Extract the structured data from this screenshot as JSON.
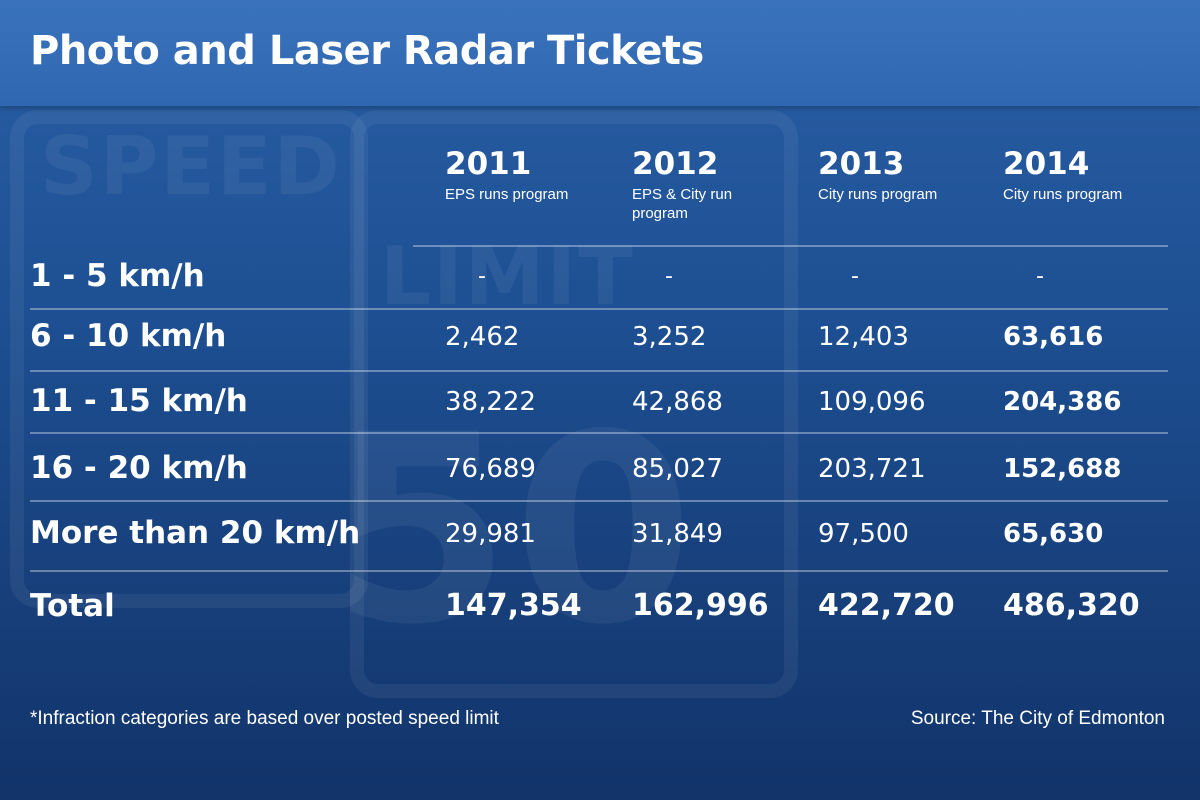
{
  "title": "Photo and Laser Radar Tickets",
  "colors": {
    "background": "#1d4f92",
    "title_bar": "#3a73bd",
    "text": "#ffffff"
  },
  "chart_data": {
    "type": "table",
    "columns": [
      {
        "year": "2011",
        "note": "EPS runs program"
      },
      {
        "year": "2012",
        "note": "EPS & City run program"
      },
      {
        "year": "2013",
        "note": "City runs program"
      },
      {
        "year": "2014",
        "note": "City runs program"
      }
    ],
    "rows": [
      {
        "label": "1 - 5 km/h",
        "values": [
          "-",
          "-",
          "-",
          "-"
        ]
      },
      {
        "label": "6 - 10 km/h",
        "values": [
          "2,462",
          "3,252",
          "12,403",
          "63,616"
        ]
      },
      {
        "label": "11 - 15 km/h",
        "values": [
          "38,222",
          "42,868",
          "109,096",
          "204,386"
        ]
      },
      {
        "label": "16 - 20 km/h",
        "values": [
          "76,689",
          "85,027",
          "203,721",
          "152,688"
        ]
      },
      {
        "label": "More than 20 km/h",
        "values": [
          "29,981",
          "31,849",
          "97,500",
          "65,630"
        ]
      }
    ],
    "total": {
      "label": "Total",
      "values": [
        "147,354",
        "162,996",
        "422,720",
        "486,320"
      ]
    }
  },
  "footnote": "*Infraction categories are based over posted speed limit",
  "source": "Source: The City of Edmonton"
}
